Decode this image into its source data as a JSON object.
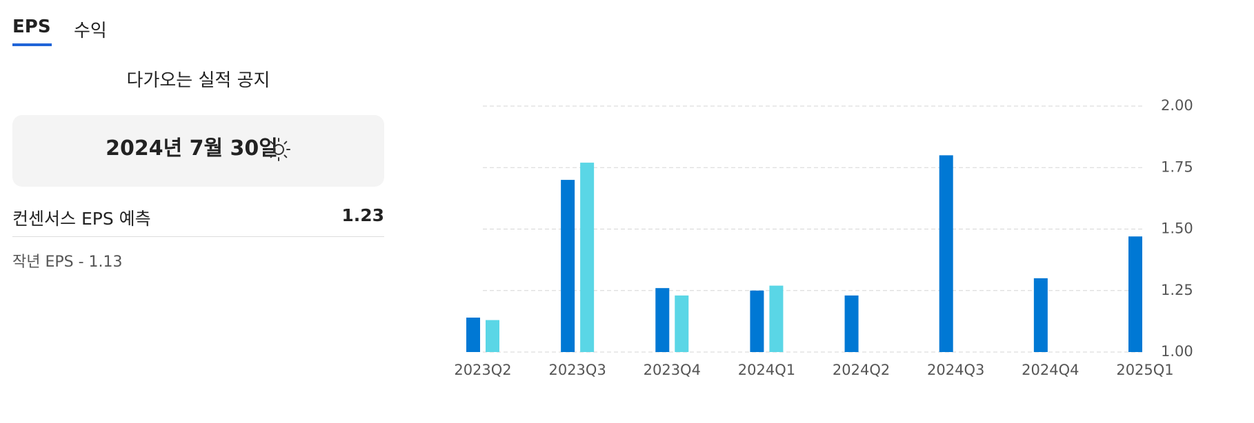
{
  "tabs": [
    "EPS",
    "수익"
  ],
  "upcoming": {
    "heading": "다가오는 실적 공지",
    "date": "2024년 7월 30일",
    "consensus_label": "컨센서스 EPS 예측",
    "consensus_value": "1.23",
    "last_year": "작년 EPS - 1.13"
  },
  "chart_data": {
    "type": "bar",
    "categories": [
      "2023Q2",
      "2023Q3",
      "2023Q4",
      "2024Q1",
      "2024Q2",
      "2024Q3",
      "2024Q4",
      "2025Q1"
    ],
    "series": [
      {
        "color": "#0078d4",
        "values": [
          1.14,
          1.7,
          1.26,
          1.25,
          1.23,
          1.8,
          1.3,
          1.47
        ]
      },
      {
        "color": "#5ad6e6",
        "values": [
          1.13,
          1.77,
          1.23,
          1.27,
          null,
          null,
          null,
          null
        ]
      }
    ],
    "ylim": [
      1,
      2
    ],
    "yticks": [
      {
        "value": 1,
        "label": "1.00"
      },
      1.25,
      {
        "value": 1.5,
        "label": "1.50"
      },
      1.75,
      {
        "value": 2,
        "label": "2.00"
      }
    ],
    "grid": true
  }
}
